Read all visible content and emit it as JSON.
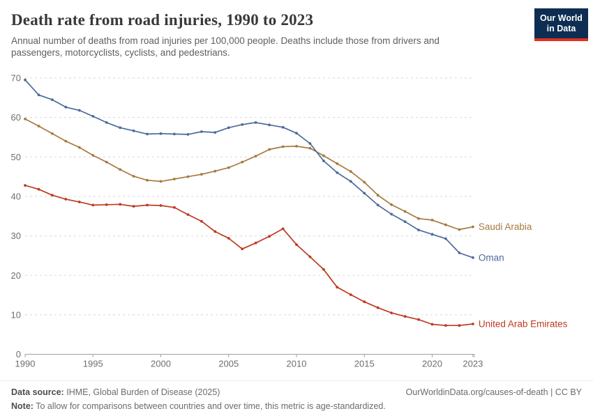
{
  "header": {
    "title": "Death rate from road injuries, 1990 to 2023",
    "subtitle": "Annual number of deaths from road injuries per 100,000 people. Deaths include those from drivers and passengers, motorcyclists, cyclists, and pedestrians.",
    "logo": {
      "line1": "Our World",
      "line2": "in Data",
      "bg_color": "#0D2E52",
      "accent_color": "#E0321F"
    }
  },
  "chart_data": {
    "type": "line",
    "title": "Death rate from road injuries, 1990 to 2023",
    "xlabel": "",
    "ylabel": "",
    "xlim": [
      1990,
      2023
    ],
    "ylim": [
      0,
      70
    ],
    "grid": "horizontal-dashed",
    "legend_position": "end-of-line-labels",
    "x_ticks": [
      1990,
      1995,
      2000,
      2005,
      2010,
      2015,
      2020,
      2023
    ],
    "y_ticks": [
      0,
      10,
      20,
      30,
      40,
      50,
      60,
      70
    ],
    "x": [
      1990,
      1991,
      1992,
      1993,
      1994,
      1995,
      1996,
      1997,
      1998,
      1999,
      2000,
      2001,
      2002,
      2003,
      2004,
      2005,
      2006,
      2007,
      2008,
      2009,
      2010,
      2011,
      2012,
      2013,
      2014,
      2015,
      2016,
      2017,
      2018,
      2019,
      2020,
      2021,
      2022,
      2023
    ],
    "series": [
      {
        "name": "Saudi Arabia",
        "color": "#A57A3F",
        "values": [
          59.6,
          57.8,
          55.9,
          54.0,
          52.4,
          50.4,
          48.7,
          46.8,
          45.1,
          44.1,
          43.8,
          44.4,
          45.0,
          45.6,
          46.4,
          47.3,
          48.7,
          50.2,
          51.9,
          52.6,
          52.7,
          52.2,
          50.3,
          48.3,
          46.3,
          43.6,
          40.3,
          37.9,
          36.2,
          34.4,
          34.0,
          32.8,
          31.6,
          32.3
        ]
      },
      {
        "name": "Oman",
        "color": "#4C6A9C",
        "values": [
          69.5,
          65.7,
          64.5,
          62.6,
          61.8,
          60.3,
          58.7,
          57.4,
          56.6,
          55.8,
          55.9,
          55.8,
          55.7,
          56.4,
          56.2,
          57.4,
          58.2,
          58.7,
          58.1,
          57.5,
          56.0,
          53.4,
          49.0,
          46.0,
          43.8,
          40.8,
          37.8,
          35.5,
          33.6,
          31.5,
          30.4,
          29.3,
          25.7,
          24.5
        ]
      },
      {
        "name": "United Arab Emirates",
        "color": "#BD3A1F",
        "values": [
          42.8,
          41.8,
          40.3,
          39.3,
          38.6,
          37.8,
          37.9,
          38.0,
          37.5,
          37.8,
          37.7,
          37.2,
          35.4,
          33.7,
          31.1,
          29.4,
          26.7,
          28.2,
          29.9,
          31.8,
          27.8,
          24.7,
          21.5,
          17.0,
          15.1,
          13.3,
          11.8,
          10.5,
          9.6,
          8.8,
          7.6,
          7.3,
          7.3,
          7.7
        ]
      }
    ]
  },
  "footer": {
    "data_source_label": "Data source:",
    "data_source": "IHME, Global Burden of Disease (2025)",
    "credit": "OurWorldinData.org/causes-of-death | CC BY",
    "note_label": "Note:",
    "note": "To allow for comparisons between countries and over time, this metric is age-standardized."
  }
}
